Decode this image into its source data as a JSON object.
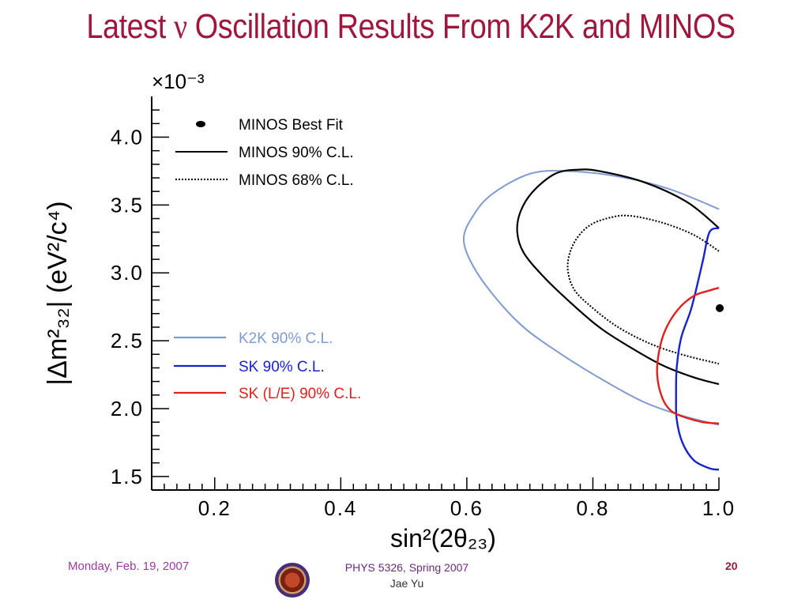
{
  "slide": {
    "title_prefix": "Latest ",
    "title_symbol": "ν",
    "title_suffix": " Oscillation Results From K2K and MINOS"
  },
  "footer": {
    "date": "Monday, Feb. 19, 2007",
    "course": "PHYS 5326, Spring 2007",
    "author": "Jae Yu",
    "page": "20"
  },
  "chart_data": {
    "type": "line",
    "xlabel": "sin²(2θ₂₃)",
    "ylabel": "|Δm²₃₂| (eV²/c⁴)",
    "y_multiplier": "×10⁻³",
    "xlim": [
      0.1,
      1.0
    ],
    "ylim": [
      1.4,
      4.3
    ],
    "x_ticks": [
      "0.2",
      "0.4",
      "0.6",
      "0.8",
      "1.0"
    ],
    "y_ticks": [
      "1.5",
      "2.0",
      "2.5",
      "3.0",
      "3.5",
      "4.0"
    ],
    "x_tick_values": [
      0.2,
      0.4,
      0.6,
      0.8,
      1.0
    ],
    "y_tick_values": [
      1.5,
      2.0,
      2.5,
      3.0,
      3.5,
      4.0
    ],
    "legend_top": [
      "MINOS Best Fit",
      "MINOS 90% C.L.",
      "MINOS 68% C.L."
    ],
    "legend_bottom": [
      "K2K 90% C.L.",
      "SK 90% C.L.",
      "SK (L/E) 90% C.L."
    ],
    "colors": {
      "minos": "#000000",
      "k2k": "#7f9bd0",
      "sk": "#1a22d0",
      "sk_le": "#e0201c",
      "axis": "#000000"
    },
    "best_fit": {
      "x": 1.0,
      "y": 2.74
    },
    "series": [
      {
        "name": "K2K 90% C.L.",
        "style": "k2k",
        "closed": false,
        "points": [
          [
            1.0,
            3.47
          ],
          [
            0.92,
            3.62
          ],
          [
            0.84,
            3.71
          ],
          [
            0.76,
            3.75
          ],
          [
            0.7,
            3.73
          ],
          [
            0.64,
            3.58
          ],
          [
            0.61,
            3.42
          ],
          [
            0.595,
            3.25
          ],
          [
            0.61,
            3.05
          ],
          [
            0.645,
            2.82
          ],
          [
            0.69,
            2.6
          ],
          [
            0.75,
            2.4
          ],
          [
            0.82,
            2.2
          ],
          [
            0.88,
            2.05
          ],
          [
            0.94,
            1.95
          ],
          [
            1.0,
            1.88
          ]
        ]
      },
      {
        "name": "MINOS 90% C.L.",
        "style": "minos",
        "closed": false,
        "points": [
          [
            1.0,
            3.33
          ],
          [
            0.95,
            3.52
          ],
          [
            0.88,
            3.67
          ],
          [
            0.81,
            3.75
          ],
          [
            0.775,
            3.76
          ],
          [
            0.74,
            3.73
          ],
          [
            0.705,
            3.6
          ],
          [
            0.685,
            3.45
          ],
          [
            0.68,
            3.3
          ],
          [
            0.69,
            3.15
          ],
          [
            0.72,
            2.98
          ],
          [
            0.76,
            2.8
          ],
          [
            0.81,
            2.6
          ],
          [
            0.86,
            2.45
          ],
          [
            0.91,
            2.32
          ],
          [
            0.96,
            2.23
          ],
          [
            1.0,
            2.18
          ]
        ]
      },
      {
        "name": "MINOS 68% C.L.",
        "style": "minos-dashed",
        "closed": false,
        "points": [
          [
            1.0,
            3.16
          ],
          [
            0.96,
            3.28
          ],
          [
            0.91,
            3.37
          ],
          [
            0.86,
            3.42
          ],
          [
            0.83,
            3.41
          ],
          [
            0.795,
            3.35
          ],
          [
            0.77,
            3.22
          ],
          [
            0.76,
            3.05
          ],
          [
            0.77,
            2.88
          ],
          [
            0.8,
            2.74
          ],
          [
            0.84,
            2.6
          ],
          [
            0.89,
            2.48
          ],
          [
            0.94,
            2.4
          ],
          [
            1.0,
            2.33
          ]
        ]
      },
      {
        "name": "SK 90% C.L.",
        "style": "sk",
        "closed": false,
        "points": [
          [
            1.0,
            3.33
          ],
          [
            0.985,
            3.3
          ],
          [
            0.975,
            3.1
          ],
          [
            0.965,
            2.9
          ],
          [
            0.955,
            2.72
          ],
          [
            0.94,
            2.52
          ],
          [
            0.933,
            2.3
          ],
          [
            0.932,
            2.1
          ],
          [
            0.933,
            1.92
          ],
          [
            0.942,
            1.75
          ],
          [
            0.96,
            1.62
          ],
          [
            0.985,
            1.56
          ],
          [
            1.0,
            1.55
          ]
        ]
      },
      {
        "name": "SK (L/E) 90% C.L.",
        "style": "sk_le",
        "closed": false,
        "points": [
          [
            1.0,
            2.89
          ],
          [
            0.985,
            2.87
          ],
          [
            0.96,
            2.83
          ],
          [
            0.935,
            2.73
          ],
          [
            0.915,
            2.58
          ],
          [
            0.905,
            2.42
          ],
          [
            0.902,
            2.25
          ],
          [
            0.91,
            2.08
          ],
          [
            0.925,
            1.98
          ],
          [
            0.95,
            1.93
          ],
          [
            0.975,
            1.9
          ],
          [
            1.0,
            1.89
          ]
        ]
      }
    ]
  }
}
